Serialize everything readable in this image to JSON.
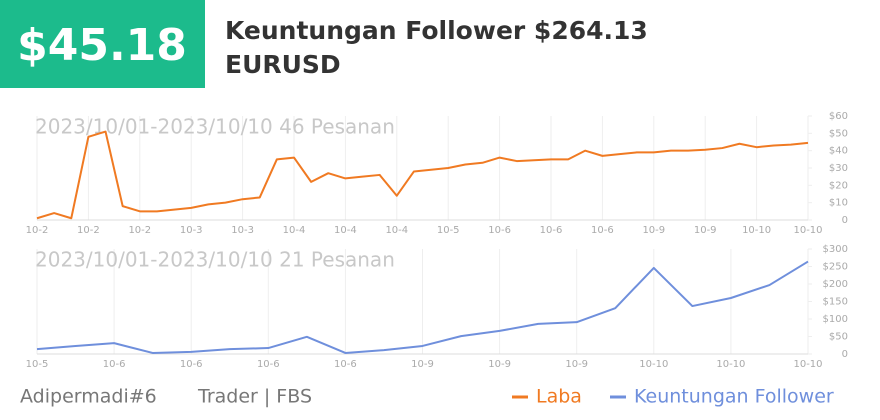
{
  "header": {
    "amount": "$45.18",
    "title": "Keuntungan Follower $264.13",
    "symbol": "EURUSD"
  },
  "chart_data": [
    {
      "type": "line",
      "subtitle": "2023/10/01-2023/10/10 46 Pesanan",
      "categories": [
        "10-2",
        null,
        null,
        "10-2",
        null,
        null,
        "10-2",
        null,
        null,
        "10-3",
        null,
        null,
        "10-3",
        null,
        null,
        "10-4",
        null,
        null,
        "10-4",
        null,
        null,
        "10-4",
        null,
        null,
        "10-5",
        null,
        null,
        "10-6",
        null,
        null,
        "10-6",
        null,
        null,
        "10-6",
        null,
        null,
        "10-9",
        null,
        null,
        "10-9",
        null,
        null,
        "10-10",
        null,
        null,
        "10-10"
      ],
      "series": [
        {
          "name": "Laba",
          "color": "#f07a22",
          "values": [
            1,
            4,
            1,
            48,
            51,
            8,
            5,
            5,
            6,
            7,
            9,
            10,
            12,
            13,
            35,
            36,
            22,
            27,
            24,
            25,
            26,
            14,
            28,
            29,
            30,
            32,
            33,
            36,
            34,
            34.5,
            35,
            35,
            40,
            37,
            38,
            39,
            39,
            40,
            40,
            40.5,
            41.5,
            44,
            42,
            43,
            43.5,
            44.5
          ]
        }
      ],
      "ylim": [
        0,
        60
      ],
      "yticks": [
        {
          "value": 0,
          "label": "0"
        },
        {
          "value": 10,
          "label": "$10"
        },
        {
          "value": 20,
          "label": "$20"
        },
        {
          "value": 30,
          "label": "$30"
        },
        {
          "value": 40,
          "label": "$40"
        },
        {
          "value": 50,
          "label": "$50"
        },
        {
          "value": 60,
          "label": "$60"
        }
      ]
    },
    {
      "type": "line",
      "subtitle": "2023/10/01-2023/10/10 21 Pesanan",
      "categories": [
        "10-5",
        null,
        "10-6",
        null,
        "10-6",
        null,
        "10-6",
        null,
        "10-6",
        null,
        "10-9",
        null,
        "10-9",
        null,
        "10-9",
        null,
        "10-10",
        null,
        "10-10",
        null,
        "10-10"
      ],
      "series": [
        {
          "name": "Keuntungan Follower",
          "color": "#6f8fdc",
          "values": [
            14,
            23,
            31,
            3,
            6,
            14,
            17,
            49,
            3,
            11,
            23,
            51,
            66,
            86,
            91,
            131,
            246,
            137,
            160,
            197,
            264.13
          ]
        }
      ],
      "ylim": [
        0,
        300
      ],
      "yticks": [
        {
          "value": 0,
          "label": "0"
        },
        {
          "value": 50,
          "label": "$50"
        },
        {
          "value": 100,
          "label": "$100"
        },
        {
          "value": 150,
          "label": "$150"
        },
        {
          "value": 200,
          "label": "$200"
        },
        {
          "value": 250,
          "label": "$250"
        },
        {
          "value": 300,
          "label": "$300"
        }
      ]
    }
  ],
  "footer": {
    "user": "Adipermadi#6",
    "role": "Trader | FBS"
  }
}
